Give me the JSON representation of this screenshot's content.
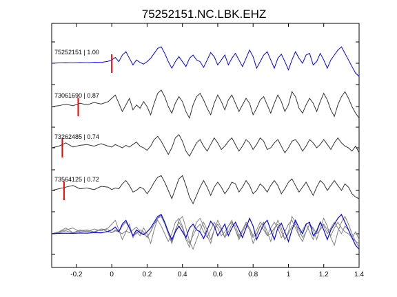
{
  "chart_data": {
    "type": "line",
    "title": "75252151.NC.LBK.EHZ",
    "xlabel": "",
    "ylabel": "",
    "xlim": [
      -0.34,
      1.4
    ],
    "x_ticks": [
      -0.2,
      0,
      0.2,
      0.4,
      0.6,
      0.8,
      1,
      1.2,
      1.4
    ],
    "x_tick_labels": [
      "-0.2",
      "0",
      "0.2",
      "0.4",
      "0.6",
      "0.8",
      "1",
      "1.2",
      "1.4"
    ],
    "grid": false,
    "colors": {
      "reference": "#0000ff",
      "correlated": "#333333",
      "overlay_gray": "#808080",
      "pick": "#ff0000"
    },
    "series": [
      {
        "name": "75252151 | 1.00",
        "color": "#0000ff",
        "pick_time": 0.0,
        "x": [
          -0.34,
          -0.3,
          -0.26,
          -0.22,
          -0.18,
          -0.14,
          -0.1,
          -0.06,
          -0.02,
          0.0,
          0.02,
          0.04,
          0.06,
          0.08,
          0.1,
          0.12,
          0.14,
          0.16,
          0.18,
          0.2,
          0.22,
          0.24,
          0.26,
          0.28,
          0.3,
          0.32,
          0.34,
          0.36,
          0.38,
          0.4,
          0.42,
          0.44,
          0.46,
          0.48,
          0.5,
          0.52,
          0.54,
          0.56,
          0.58,
          0.6,
          0.62,
          0.64,
          0.66,
          0.68,
          0.7,
          0.72,
          0.74,
          0.76,
          0.78,
          0.8,
          0.82,
          0.84,
          0.86,
          0.88,
          0.9,
          0.92,
          0.94,
          0.96,
          0.98,
          1.0,
          1.02,
          1.04,
          1.06,
          1.08,
          1.1,
          1.12,
          1.14,
          1.16,
          1.18,
          1.2,
          1.22,
          1.24,
          1.26,
          1.28,
          1.3,
          1.32,
          1.34,
          1.36,
          1.38,
          1.4
        ],
        "y": [
          0,
          0.02,
          0.03,
          0.02,
          0.04,
          0.03,
          0.06,
          0.05,
          0.12,
          0.2,
          0.35,
          0.1,
          0.5,
          0.7,
          0.3,
          -0.1,
          0.2,
          0.05,
          -0.05,
          0.1,
          0.3,
          0.6,
          0.9,
          1.0,
          0.6,
          0.1,
          -0.3,
          0.1,
          0.4,
          0.1,
          -0.2,
          0.3,
          0.5,
          0.2,
          0.1,
          -0.25,
          0.2,
          0.65,
          0.4,
          -0.1,
          0.2,
          0.5,
          -0.1,
          0.3,
          0.6,
          0.2,
          -0.2,
          0.3,
          0.8,
          0.4,
          -0.3,
          0.1,
          0.5,
          0.7,
          0.2,
          -0.3,
          0.3,
          0.55,
          0.1,
          -0.4,
          0.2,
          0.7,
          0.3,
          0.0,
          0.5,
          0.6,
          -0.1,
          0.1,
          0.6,
          0.2,
          -0.3,
          0.2,
          0.5,
          0.8,
          1.0,
          0.6,
          0.2,
          -0.2,
          -0.6,
          -0.8
        ]
      },
      {
        "name": "73061690 | 0.87",
        "color": "#333333",
        "pick_time": -0.19,
        "x": [
          -0.34,
          -0.3,
          -0.26,
          -0.22,
          -0.18,
          -0.14,
          -0.1,
          -0.06,
          -0.02,
          0.0,
          0.02,
          0.04,
          0.06,
          0.08,
          0.1,
          0.12,
          0.14,
          0.16,
          0.18,
          0.2,
          0.22,
          0.24,
          0.26,
          0.28,
          0.3,
          0.32,
          0.34,
          0.36,
          0.38,
          0.4,
          0.42,
          0.44,
          0.46,
          0.48,
          0.5,
          0.52,
          0.54,
          0.56,
          0.58,
          0.6,
          0.62,
          0.64,
          0.66,
          0.68,
          0.7,
          0.72,
          0.74,
          0.76,
          0.78,
          0.8,
          0.82,
          0.84,
          0.86,
          0.88,
          0.9,
          0.92,
          0.94,
          0.96,
          0.98,
          1.0,
          1.02,
          1.04,
          1.06,
          1.08,
          1.1,
          1.12,
          1.14,
          1.16,
          1.18,
          1.2,
          1.22,
          1.24,
          1.26,
          1.28,
          1.3,
          1.32,
          1.34,
          1.36,
          1.38,
          1.4
        ],
        "y": [
          0,
          0.05,
          0.15,
          0.05,
          0.2,
          0.1,
          0.25,
          0.15,
          0.3,
          0.5,
          0.7,
          0.2,
          -0.3,
          0.1,
          0.5,
          -0.2,
          0.1,
          -0.1,
          0.3,
          0.0,
          -0.5,
          0.2,
          0.8,
          1.0,
          0.6,
          0.0,
          -0.4,
          0.2,
          0.6,
          0.3,
          -0.3,
          -0.7,
          0.1,
          0.6,
          0.8,
          0.4,
          -0.1,
          -0.5,
          0.2,
          0.7,
          0.3,
          -0.2,
          0.4,
          0.7,
          0.2,
          -0.3,
          0.1,
          0.5,
          0.2,
          -0.5,
          -0.1,
          0.4,
          0.6,
          0.1,
          -0.4,
          0.2,
          0.7,
          0.3,
          -0.3,
          0.1,
          0.9,
          0.6,
          -0.1,
          -0.4,
          0.1,
          0.5,
          0.2,
          -0.3,
          0.3,
          0.8,
          0.4,
          -0.2,
          -0.6,
          0.1,
          0.6,
          0.9,
          0.5,
          0.0,
          -0.4,
          -0.7
        ]
      },
      {
        "name": "73262485 | 0.74",
        "color": "#333333",
        "pick_time": -0.28,
        "x": [
          -0.34,
          -0.3,
          -0.26,
          -0.22,
          -0.18,
          -0.14,
          -0.1,
          -0.06,
          -0.02,
          0.0,
          0.02,
          0.04,
          0.06,
          0.08,
          0.1,
          0.12,
          0.14,
          0.16,
          0.18,
          0.2,
          0.22,
          0.24,
          0.26,
          0.28,
          0.3,
          0.32,
          0.34,
          0.36,
          0.38,
          0.4,
          0.42,
          0.44,
          0.46,
          0.48,
          0.5,
          0.52,
          0.54,
          0.56,
          0.58,
          0.6,
          0.62,
          0.64,
          0.66,
          0.68,
          0.7,
          0.72,
          0.74,
          0.76,
          0.78,
          0.8,
          0.82,
          0.84,
          0.86,
          0.88,
          0.9,
          0.92,
          0.94,
          0.96,
          0.98,
          1.0,
          1.02,
          1.04,
          1.06,
          1.08,
          1.1,
          1.12,
          1.14,
          1.16,
          1.18,
          1.2,
          1.22,
          1.24,
          1.26,
          1.28,
          1.3,
          1.32,
          1.34,
          1.36,
          1.38,
          1.4
        ],
        "y": [
          0,
          0.1,
          0.3,
          0.05,
          0.15,
          0.2,
          0.1,
          0.25,
          0.1,
          0.05,
          0.2,
          0.1,
          0.0,
          0.15,
          0.05,
          0.2,
          0.35,
          0.1,
          0.0,
          -0.15,
          0.1,
          0.5,
          0.7,
          0.4,
          0.0,
          -0.4,
          0.0,
          0.6,
          0.8,
          0.4,
          -0.2,
          -0.5,
          -0.1,
          0.3,
          0.5,
          0.1,
          -0.2,
          0.2,
          0.6,
          0.3,
          -0.1,
          0.1,
          0.4,
          0.6,
          0.2,
          -0.2,
          0.1,
          0.5,
          0.3,
          -0.1,
          0.2,
          0.6,
          0.4,
          -0.1,
          0.0,
          0.3,
          0.5,
          0.1,
          -0.3,
          0.0,
          0.4,
          0.5,
          0.2,
          -0.2,
          0.1,
          0.5,
          0.3,
          0.0,
          0.2,
          0.5,
          0.2,
          -0.1,
          0.3,
          0.6,
          0.3,
          0.1,
          0.0,
          -0.2,
          0.1,
          -0.3
        ]
      },
      {
        "name": "73564125 | 0.72",
        "color": "#333333",
        "pick_time": -0.27,
        "x": [
          -0.34,
          -0.3,
          -0.26,
          -0.22,
          -0.18,
          -0.14,
          -0.1,
          -0.06,
          -0.02,
          0.0,
          0.02,
          0.04,
          0.06,
          0.08,
          0.1,
          0.12,
          0.14,
          0.16,
          0.18,
          0.2,
          0.22,
          0.24,
          0.26,
          0.28,
          0.3,
          0.32,
          0.34,
          0.36,
          0.38,
          0.4,
          0.42,
          0.44,
          0.46,
          0.48,
          0.5,
          0.52,
          0.54,
          0.56,
          0.58,
          0.6,
          0.62,
          0.64,
          0.66,
          0.68,
          0.7,
          0.72,
          0.74,
          0.76,
          0.78,
          0.8,
          0.82,
          0.84,
          0.86,
          0.88,
          0.9,
          0.92,
          0.94,
          0.96,
          0.98,
          1.0,
          1.02,
          1.04,
          1.06,
          1.08,
          1.1,
          1.12,
          1.14,
          1.16,
          1.18,
          1.2,
          1.22,
          1.24,
          1.26,
          1.28,
          1.3,
          1.32,
          1.34,
          1.36,
          1.38,
          1.4
        ],
        "y": [
          0,
          0.1,
          0.2,
          0.3,
          0.1,
          0.15,
          0.05,
          0.25,
          0.2,
          0.05,
          0.15,
          0.1,
          0.4,
          0.6,
          0.3,
          -0.1,
          0.0,
          0.2,
          0.1,
          -0.2,
          0.1,
          0.5,
          0.8,
          0.9,
          0.5,
          0.0,
          -0.5,
          0.1,
          0.7,
          0.9,
          0.3,
          -0.4,
          -0.8,
          -0.3,
          0.2,
          0.6,
          0.2,
          -0.3,
          0.2,
          0.5,
          0.2,
          -0.2,
          0.1,
          0.5,
          0.4,
          -0.1,
          0.2,
          0.6,
          0.3,
          -0.2,
          0.0,
          0.4,
          0.2,
          -0.1,
          0.3,
          0.6,
          0.3,
          -0.2,
          0.1,
          0.5,
          0.7,
          0.3,
          -0.1,
          0.2,
          0.5,
          0.1,
          -0.3,
          0.2,
          0.6,
          0.4,
          0.0,
          0.3,
          0.6,
          0.3,
          0.0,
          0.4,
          0.2,
          -0.2,
          -0.4,
          -0.5
        ]
      }
    ],
    "overlay": {
      "description_series": [
        "75252151 | 1.00",
        "73061690 | 0.87",
        "73262485 | 0.74",
        "73564125 | 0.72"
      ]
    }
  }
}
